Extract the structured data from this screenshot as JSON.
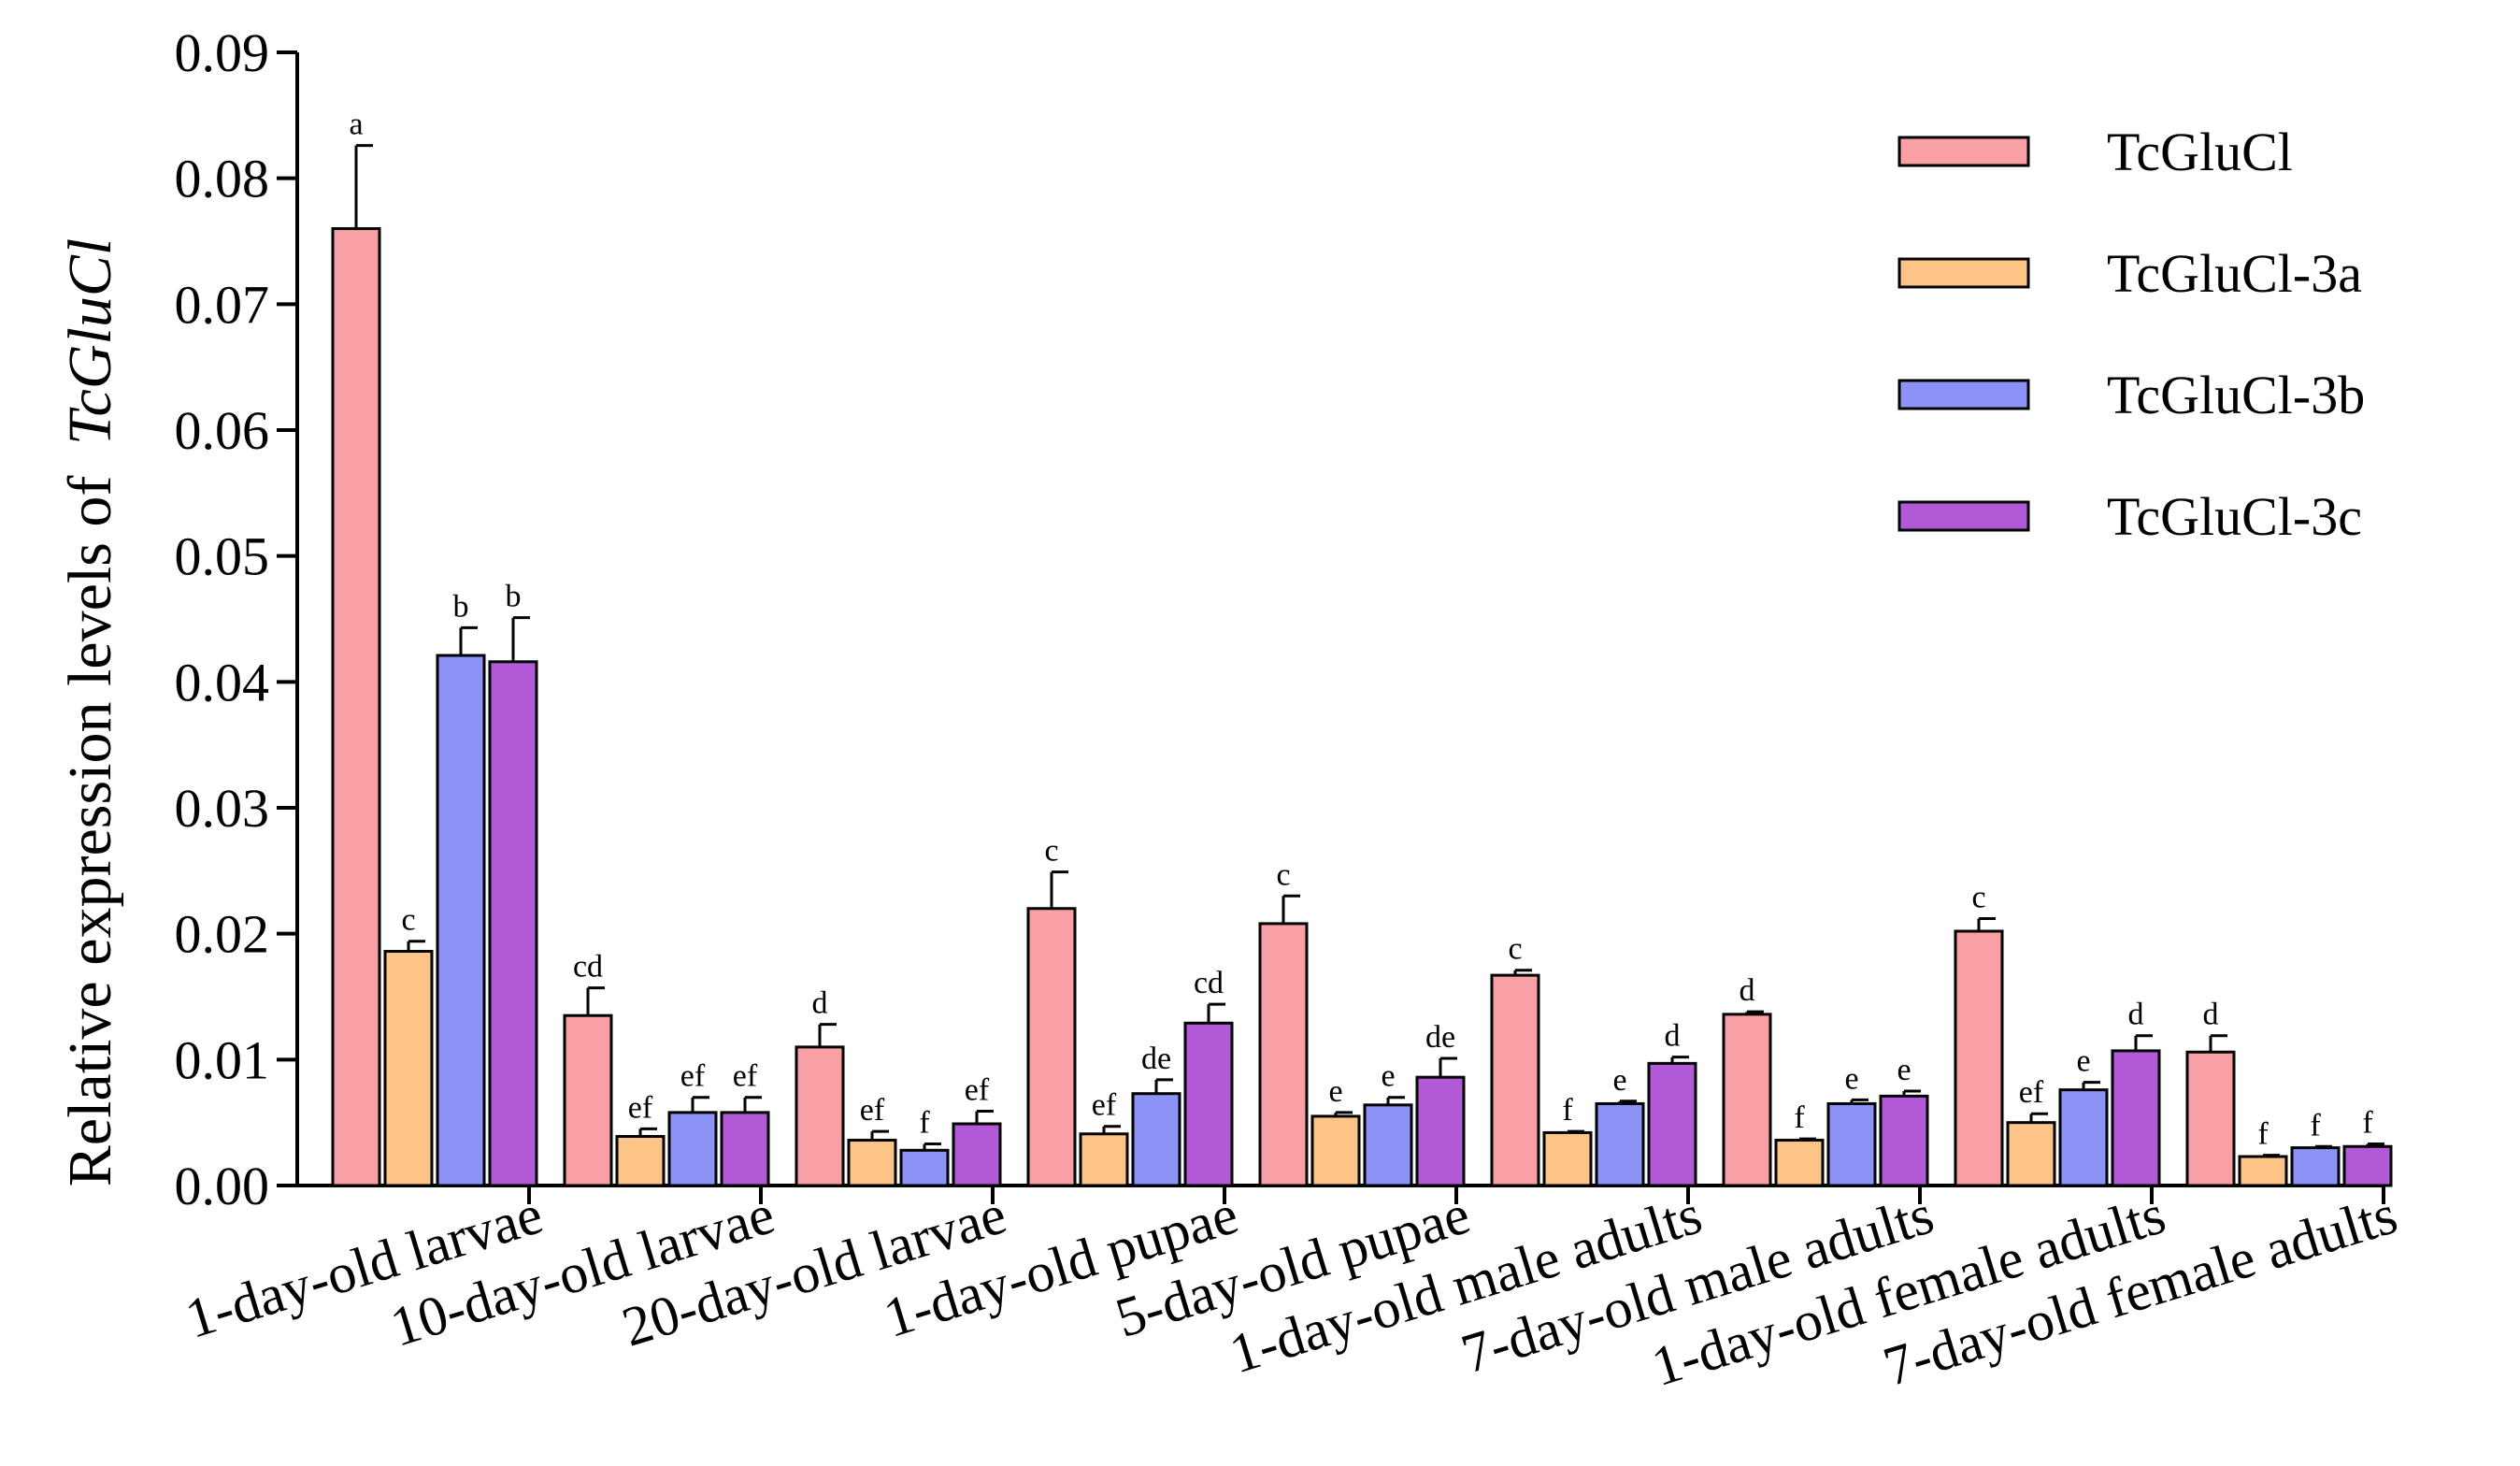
{
  "chart_data": {
    "type": "bar",
    "title": "",
    "xlabel": "",
    "ylabel": "Relative expression levels of",
    "ylabel_gene": "TcGluCl",
    "ylim": [
      0,
      0.09
    ],
    "yticks": [
      "0.00",
      "0.01",
      "0.02",
      "0.03",
      "0.04",
      "0.05",
      "0.06",
      "0.07",
      "0.08",
      "0.09"
    ],
    "categories": [
      "1-day-old larvae",
      "10-day-old larvae",
      "20-day-old larvae",
      "1-day-old pupae",
      "5-day-old pupae",
      "1-day-old male adults",
      "7-day-old male adults",
      "1-day-old female adults",
      "7-day-old female adults"
    ],
    "legend_position": "top-right",
    "series": [
      {
        "name": "TcGluCl",
        "color": "#F8A0A4",
        "values": [
          0.076,
          0.0135,
          0.011,
          0.022,
          0.0208,
          0.0167,
          0.0136,
          0.0202,
          0.0106
        ],
        "errors": [
          0.0066,
          0.0022,
          0.0018,
          0.0029,
          0.0022,
          0.0004,
          0.0002,
          0.001,
          0.0013
        ],
        "letters": [
          "a",
          "cd",
          "d",
          "c",
          "c",
          "c",
          "d",
          "c",
          "d"
        ]
      },
      {
        "name": "TcGluCl-3a",
        "color": "#FDC488",
        "values": [
          0.0186,
          0.0039,
          0.0036,
          0.0041,
          0.0055,
          0.0042,
          0.0036,
          0.005,
          0.0023
        ],
        "errors": [
          0.0008,
          0.0006,
          0.0007,
          0.0006,
          0.0003,
          0.0001,
          0.0001,
          0.0007,
          0.0001
        ],
        "letters": [
          "c",
          "ef",
          "ef",
          "ef",
          "e",
          "f",
          "f",
          "ef",
          "f"
        ]
      },
      {
        "name": "TcGluCl-3b",
        "color": "#8C93F7",
        "values": [
          0.0421,
          0.0058,
          0.0028,
          0.0073,
          0.0064,
          0.0065,
          0.0065,
          0.0076,
          0.003
        ],
        "errors": [
          0.0022,
          0.0012,
          0.0005,
          0.0011,
          0.0006,
          0.0002,
          0.0003,
          0.0006,
          0.0001
        ],
        "letters": [
          "b",
          "ef",
          "f",
          "de",
          "e",
          "e",
          "e",
          "e",
          "f"
        ]
      },
      {
        "name": "TcGluCl-3c",
        "color": "#B259D8",
        "values": [
          0.0416,
          0.0058,
          0.0049,
          0.0129,
          0.0086,
          0.0097,
          0.0071,
          0.0107,
          0.0031
        ],
        "errors": [
          0.0035,
          0.0012,
          0.001,
          0.0015,
          0.0015,
          0.0005,
          0.0004,
          0.0012,
          0.0002
        ],
        "letters": [
          "b",
          "ef",
          "ef",
          "cd",
          "de",
          "d",
          "e",
          "d",
          "f"
        ]
      }
    ]
  }
}
